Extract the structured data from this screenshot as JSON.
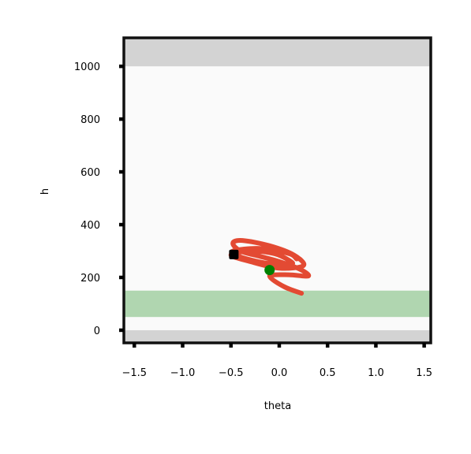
{
  "chart_data": {
    "type": "line",
    "xlabel": "theta",
    "ylabel": "h",
    "xlim": [
      -1.6,
      1.56
    ],
    "ylim": [
      -45,
      1105
    ],
    "x_ticks": [
      -1.5,
      -1.0,
      -0.5,
      0.0,
      0.5,
      1.0,
      1.5
    ],
    "x_tick_labels": [
      "−1.5",
      "−1.0",
      "−0.5",
      "0.0",
      "0.5",
      "1.0",
      "1.5"
    ],
    "y_ticks": [
      0,
      200,
      400,
      600,
      800,
      1000
    ],
    "y_tick_labels": [
      "0",
      "200",
      "400",
      "600",
      "800",
      "1000"
    ],
    "grid": false,
    "colors": {
      "background": "#fafafa",
      "out_of_bounds": "#d3d3d3",
      "target_band": "#b0d6b0",
      "trajectory": "#e34a33",
      "start_marker": "#008000",
      "end_marker": "#000000",
      "frame": "#111111"
    },
    "regions": [
      {
        "name": "upper-bound",
        "y_from": 1000,
        "y_to": 1105,
        "color": "#d3d3d3"
      },
      {
        "name": "lower-bound",
        "y_from": -45,
        "y_to": 0,
        "color": "#d3d3d3"
      },
      {
        "name": "target-band",
        "y_from": 50,
        "y_to": 150,
        "color": "#b0d6b0"
      }
    ],
    "series": [
      {
        "x": [
          0.23,
          0.05,
          -0.1,
          0.1,
          0.3,
          0.22,
          0.0,
          -0.2,
          -0.4,
          -0.48,
          -0.38,
          -0.1,
          0.15,
          0.25,
          0.0,
          -0.3,
          -0.5,
          -0.3,
          -0.05,
          0.1,
          0.12,
          -0.15,
          -0.42,
          -0.48,
          -0.2,
          0.1,
          0.18
        ],
        "y": [
          140,
          165,
          205,
          210,
          205,
          230,
          260,
          280,
          300,
          330,
          340,
          320,
          285,
          245,
          235,
          260,
          285,
          300,
          290,
          265,
          250,
          255,
          280,
          300,
          310,
          290,
          270
        ]
      }
    ],
    "markers": [
      {
        "name": "start",
        "x": -0.1,
        "y": 228,
        "color": "#008000",
        "shape": "circle"
      },
      {
        "name": "end",
        "x": -0.47,
        "y": 287,
        "color": "#000000",
        "shape": "square"
      }
    ]
  }
}
